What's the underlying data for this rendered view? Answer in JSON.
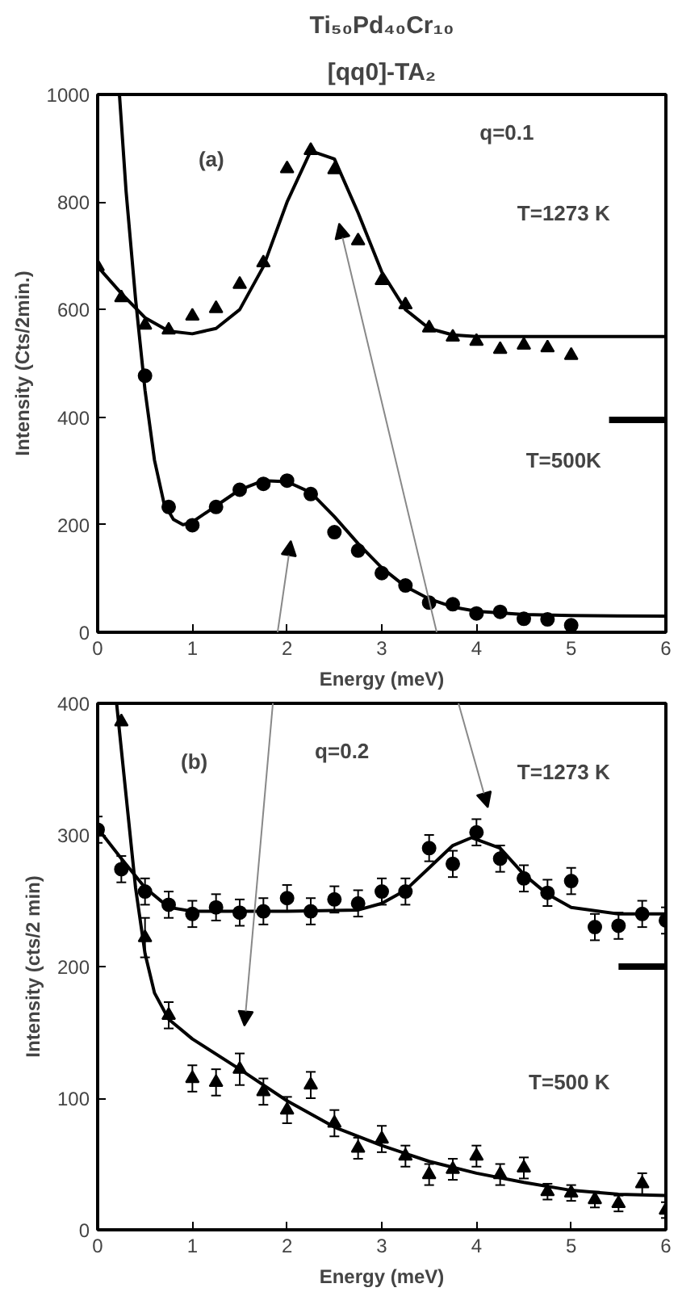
{
  "chart_data": [
    {
      "type": "scatter",
      "title": "Ti₅₀Pd₄₀Cr₁₀",
      "subtitle": "[qq0]-TA₂",
      "xlabel": "Energy (meV)",
      "ylabel": "Intensity (Cts/2min.)",
      "xlim": [
        0,
        6
      ],
      "xticks": [
        0,
        1,
        2,
        3,
        4,
        5,
        6
      ],
      "ylim": [
        0,
        1000
      ],
      "yticks": [
        0,
        200,
        400,
        600,
        800,
        1000
      ],
      "grid": false,
      "annotations": [
        "(a)",
        "q=0.1",
        "T=1273 K",
        "T=500K"
      ],
      "series": [
        {
          "marker": "triangle",
          "color": "#000000",
          "x": [
            0,
            0.25,
            0.5,
            0.75,
            1.0,
            1.25,
            1.5,
            1.75,
            2.0,
            2.25,
            2.5,
            2.75,
            3.0,
            3.25,
            3.5,
            3.75,
            4.0,
            4.25,
            4.5,
            4.75,
            5.0
          ],
          "values": [
            680,
            622,
            571,
            562,
            588,
            602,
            647,
            687,
            862,
            896,
            860,
            728,
            654,
            609,
            566,
            549,
            541,
            526,
            534,
            529,
            515
          ]
        },
        {
          "type": "line",
          "color": "#000000",
          "line_style": "solid",
          "x": [
            0,
            0.25,
            0.5,
            0.75,
            1.0,
            1.25,
            1.5,
            1.75,
            2.0,
            2.25,
            2.5,
            2.75,
            3.0,
            3.25,
            3.5,
            3.75,
            4.0,
            6.0
          ],
          "values": [
            680,
            630,
            585,
            560,
            555,
            565,
            600,
            680,
            800,
            895,
            880,
            780,
            670,
            600,
            565,
            553,
            550,
            550
          ]
        },
        {
          "marker": "circle",
          "color": "#000000",
          "x": [
            0.5,
            0.75,
            1.0,
            1.25,
            1.5,
            1.75,
            2.0,
            2.25,
            2.5,
            2.75,
            3.0,
            3.25,
            3.5,
            3.75,
            4.0,
            4.25,
            4.5,
            4.75,
            5.0
          ],
          "values": [
            477,
            233,
            199,
            233,
            265,
            276,
            282,
            257,
            186,
            152,
            110,
            87,
            55,
            52,
            35,
            38,
            25,
            24,
            13
          ]
        },
        {
          "type": "line",
          "color": "#000000",
          "line_style": "solid",
          "x": [
            0.23,
            0.3,
            0.4,
            0.5,
            0.6,
            0.7,
            0.8,
            0.9,
            1.0,
            1.25,
            1.5,
            1.75,
            2.0,
            2.25,
            2.5,
            2.75,
            3.0,
            3.25,
            3.5,
            3.75,
            4.0,
            4.5,
            5.0,
            6.0
          ],
          "values": [
            1000,
            820,
            620,
            450,
            320,
            240,
            210,
            200,
            205,
            235,
            265,
            282,
            280,
            260,
            215,
            165,
            120,
            85,
            62,
            47,
            39,
            33,
            31,
            30
          ]
        },
        {
          "type": "line",
          "color": "#000000",
          "line_style": "solid",
          "x": [
            5.4,
            6.0
          ],
          "values": [
            395,
            395
          ]
        }
      ]
    },
    {
      "type": "scatter",
      "xlabel": "Energy (meV)",
      "ylabel": "Intensity (cts/2 min)",
      "xlim": [
        0,
        6
      ],
      "xticks": [
        0,
        1,
        2,
        3,
        4,
        5,
        6
      ],
      "ylim": [
        0,
        400
      ],
      "yticks": [
        0,
        100,
        200,
        300,
        400
      ],
      "grid": false,
      "annotations": [
        "(b)",
        "q=0.2",
        "T=1273 K",
        "T=500 K"
      ],
      "series": [
        {
          "marker": "circle",
          "color": "#000000",
          "x": [
            0,
            0.25,
            0.5,
            0.75,
            1.0,
            1.25,
            1.5,
            1.75,
            2.0,
            2.25,
            2.5,
            2.75,
            3.0,
            3.25,
            3.5,
            3.75,
            4.0,
            4.25,
            4.5,
            4.75,
            5.0,
            5.25,
            5.5,
            5.75,
            6.0
          ],
          "values": [
            304,
            274,
            257,
            247,
            240,
            245,
            241,
            242,
            252,
            242,
            251,
            248,
            257,
            257,
            290,
            278,
            302,
            282,
            267,
            256,
            265,
            230,
            231,
            240,
            235
          ],
          "errors": [
            10,
            10,
            10,
            10,
            10,
            10,
            10,
            10,
            10,
            10,
            10,
            10,
            10,
            10,
            10,
            10,
            10,
            10,
            10,
            10,
            10,
            10,
            10,
            10,
            10
          ]
        },
        {
          "type": "line",
          "color": "#000000",
          "line_style": "solid",
          "x": [
            0,
            0.25,
            0.5,
            0.75,
            1.0,
            2.0,
            2.75,
            3.0,
            3.25,
            3.5,
            3.75,
            3.95,
            4.25,
            4.5,
            4.75,
            5.0,
            5.5,
            6.0
          ],
          "values": [
            305,
            282,
            260,
            245,
            242,
            242,
            243,
            248,
            258,
            275,
            292,
            298,
            290,
            270,
            255,
            245,
            240,
            240
          ]
        },
        {
          "marker": "triangle",
          "color": "#000000",
          "x": [
            0.25,
            0.5,
            0.75,
            1.0,
            1.25,
            1.5,
            1.75,
            2.0,
            2.25,
            2.5,
            2.75,
            3.0,
            3.25,
            3.5,
            3.75,
            4.0,
            4.25,
            4.5,
            4.75,
            5.0,
            5.25,
            5.5,
            5.75,
            6.0
          ],
          "values": [
            386,
            222,
            163,
            115,
            112,
            122,
            105,
            91,
            110,
            81,
            62,
            69,
            56,
            42,
            46,
            56,
            42,
            47,
            29,
            28,
            23,
            20,
            35,
            15
          ],
          "errors": [
            null,
            15,
            10,
            10,
            10,
            12,
            10,
            10,
            10,
            10,
            8,
            10,
            8,
            8,
            8,
            8,
            8,
            8,
            6,
            6,
            6,
            6,
            8,
            6
          ]
        },
        {
          "type": "line",
          "color": "#000000",
          "line_style": "solid",
          "x": [
            0.2,
            0.3,
            0.4,
            0.5,
            0.6,
            0.75,
            1.0,
            1.5,
            2.0,
            2.5,
            3.0,
            3.5,
            4.0,
            4.5,
            5.0,
            5.5,
            6.0
          ],
          "values": [
            400,
            330,
            260,
            210,
            180,
            160,
            145,
            122,
            98,
            78,
            64,
            52,
            43,
            36,
            30,
            27,
            26
          ]
        },
        {
          "type": "line",
          "color": "#000000",
          "line_style": "solid",
          "x": [
            5.5,
            6.0
          ],
          "values": [
            200,
            200
          ]
        }
      ]
    }
  ]
}
